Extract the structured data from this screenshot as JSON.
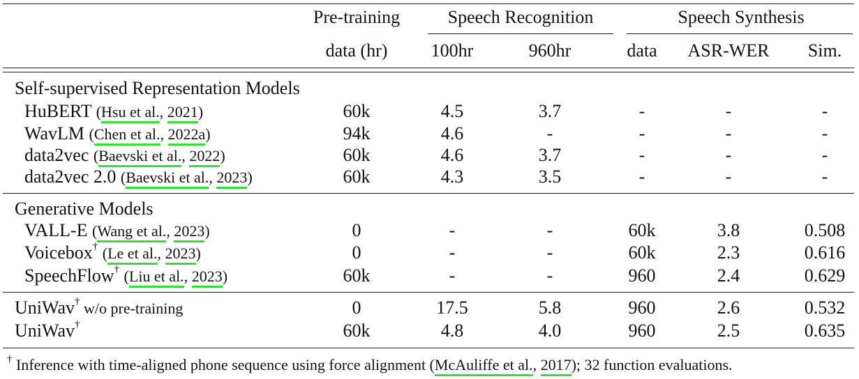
{
  "header": {
    "pretraining_top": "Pre-training",
    "pretraining_bottom": "data (hr)",
    "speech_recognition": "Speech Recognition",
    "speech_synthesis": "Speech Synthesis",
    "col_100hr": "100hr",
    "col_960hr": "960hr",
    "col_data": "data",
    "col_asr_wer": "ASR-WER",
    "col_sim": "Sim."
  },
  "sections": {
    "ssl": "Self-supervised Representation Models",
    "generative": "Generative Models"
  },
  "rows": [
    {
      "name": "HuBERT",
      "sup": "",
      "cite_pre": "(",
      "cite_authors": "Hsu et al.",
      "cite_sep": ", ",
      "cite_year": "2021",
      "cite_post": ")",
      "pretrain": "60k",
      "r100": "4.5",
      "r960": "3.7",
      "s_data": "-",
      "s_wer": "-",
      "s_sim": "-"
    },
    {
      "name": "WavLM",
      "sup": "",
      "cite_pre": "(",
      "cite_authors": "Chen et al.",
      "cite_sep": ", ",
      "cite_year": "2022a",
      "cite_post": ")",
      "pretrain": "94k",
      "r100": "4.6",
      "r960": "-",
      "s_data": "-",
      "s_wer": "-",
      "s_sim": "-"
    },
    {
      "name": "data2vec",
      "sup": "",
      "cite_pre": "(",
      "cite_authors": "Baevski et al.",
      "cite_sep": ", ",
      "cite_year": "2022",
      "cite_post": ")",
      "pretrain": "60k",
      "r100": "4.6",
      "r960": "3.7",
      "s_data": "-",
      "s_wer": "-",
      "s_sim": "-"
    },
    {
      "name": "data2vec 2.0",
      "sup": "",
      "cite_pre": "(",
      "cite_authors": "Baevski et al.",
      "cite_sep": ", ",
      "cite_year": "2023",
      "cite_post": ")",
      "pretrain": "60k",
      "r100": "4.3",
      "r960": "3.5",
      "s_data": "-",
      "s_wer": "-",
      "s_sim": "-"
    },
    {
      "name": "VALL-E",
      "sup": "",
      "cite_pre": "(",
      "cite_authors": "Wang et al.",
      "cite_sep": ", ",
      "cite_year": "2023",
      "cite_post": ")",
      "pretrain": "0",
      "r100": "-",
      "r960": "-",
      "s_data": "60k",
      "s_wer": "3.8",
      "s_sim": "0.508"
    },
    {
      "name": "Voicebox",
      "sup": "†",
      "cite_pre": "(",
      "cite_authors": "Le et al.",
      "cite_sep": ", ",
      "cite_year": "2023",
      "cite_post": ")",
      "pretrain": "0",
      "r100": "-",
      "r960": "-",
      "s_data": "60k",
      "s_wer": "2.3",
      "s_sim": "0.616"
    },
    {
      "name": "SpeechFlow",
      "sup": "†",
      "cite_pre": "(",
      "cite_authors": "Liu et al.",
      "cite_sep": ", ",
      "cite_year": "2023",
      "cite_post": ")",
      "pretrain": "60k",
      "r100": "-",
      "r960": "-",
      "s_data": "960",
      "s_wer": "2.4",
      "s_sim": "0.629"
    },
    {
      "name": "UniWav",
      "sup": "†",
      "suffix": " w/o pre-training",
      "pretrain": "0",
      "r100": "17.5",
      "r960": "5.8",
      "s_data": "960",
      "s_wer": "2.6",
      "s_sim": "0.532"
    },
    {
      "name": "UniWav",
      "sup": "†",
      "suffix": "",
      "pretrain": "60k",
      "r100": "4.8",
      "r960": "4.0",
      "s_data": "960",
      "s_wer": "2.5",
      "s_sim": "0.635"
    }
  ],
  "footnote": {
    "mark": "†",
    "text_pre": " Inference with time-aligned phone sequence using force alignment (",
    "cite_authors": "McAuliffe et al.",
    "cite_sep": ", ",
    "cite_year": "2017",
    "text_post": "); 32 function evaluations."
  }
}
